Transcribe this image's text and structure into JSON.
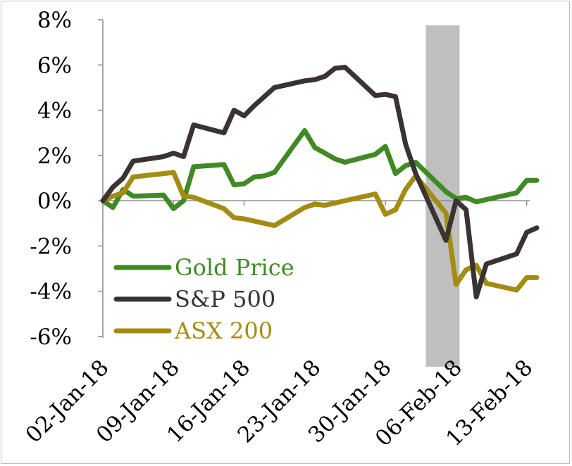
{
  "chart_data": {
    "type": "line",
    "title": "",
    "xlabel": "",
    "ylabel": "",
    "ylim": [
      -6,
      8
    ],
    "yticks": [
      -6,
      -4,
      -2,
      0,
      2,
      4,
      6,
      8
    ],
    "ytick_labels": [
      "-6%",
      "-4%",
      "-2%",
      "0%",
      "2%",
      "4%",
      "6%",
      "8%"
    ],
    "xlim": [
      0,
      43
    ],
    "xtick_days": [
      0,
      7,
      14,
      21,
      28,
      35,
      42
    ],
    "xtick_labels": [
      "02-Jan-18",
      "09-Jan-18",
      "16-Jan-18",
      "23-Jan-18",
      "30-Jan-18",
      "06-Feb-18",
      "13-Feb-18"
    ],
    "x_unit": "days since 02-Jan-18",
    "highlight_band": {
      "start_day": 32,
      "end_day": 35,
      "color": "#bfbfbf"
    },
    "legend_position": "bottom-left",
    "series": [
      {
        "name": "Gold Price",
        "color": "#3f8a23",
        "x": [
          0,
          1,
          2,
          3,
          6,
          7,
          8,
          9,
          12,
          13,
          14,
          15,
          16,
          17,
          20,
          21,
          22,
          23,
          24,
          27,
          28,
          29,
          30,
          31,
          34,
          35,
          36,
          37,
          38,
          41,
          42,
          43
        ],
        "y": [
          0,
          -0.3,
          0.5,
          0.2,
          0.25,
          -0.35,
          0.0,
          1.5,
          1.6,
          0.7,
          0.75,
          1.05,
          1.1,
          1.25,
          3.1,
          2.35,
          2.1,
          1.85,
          1.7,
          2.05,
          2.4,
          1.2,
          1.55,
          1.7,
          0.4,
          0.1,
          0.15,
          -0.05,
          0.05,
          0.35,
          0.9,
          0.9
        ]
      },
      {
        "name": "S&P 500",
        "color": "#3b3331",
        "x": [
          0,
          1,
          2,
          3,
          6,
          7,
          8,
          9,
          12,
          13,
          14,
          15,
          16,
          17,
          20,
          21,
          22,
          23,
          24,
          27,
          28,
          29,
          30,
          31,
          34,
          35,
          36,
          37,
          38,
          41,
          42,
          43
        ],
        "y": [
          0,
          0.6,
          1.0,
          1.75,
          1.95,
          2.1,
          1.95,
          3.35,
          3.0,
          4.0,
          3.75,
          4.2,
          4.6,
          5.0,
          5.3,
          5.35,
          5.5,
          5.85,
          5.9,
          4.65,
          4.7,
          4.6,
          2.5,
          1.2,
          -1.75,
          0.0,
          -0.4,
          -4.25,
          -2.8,
          -2.35,
          -1.4,
          -1.2
        ]
      },
      {
        "name": "ASX 200",
        "color": "#a48c14",
        "x": [
          0,
          1,
          2,
          3,
          6,
          7,
          8,
          9,
          12,
          13,
          14,
          15,
          16,
          17,
          20,
          21,
          22,
          23,
          24,
          27,
          28,
          29,
          30,
          31,
          34,
          35,
          36,
          37,
          38,
          41,
          42,
          43
        ],
        "y": [
          0,
          0.2,
          0.35,
          1.05,
          1.2,
          1.25,
          0.2,
          0.15,
          -0.35,
          -0.75,
          -0.8,
          -0.9,
          -1.0,
          -1.1,
          -0.3,
          -0.15,
          -0.2,
          -0.1,
          0.0,
          0.3,
          -0.6,
          -0.4,
          0.5,
          1.1,
          -0.55,
          -3.7,
          -3.05,
          -2.85,
          -3.65,
          -3.95,
          -3.4,
          -3.4
        ]
      }
    ]
  }
}
